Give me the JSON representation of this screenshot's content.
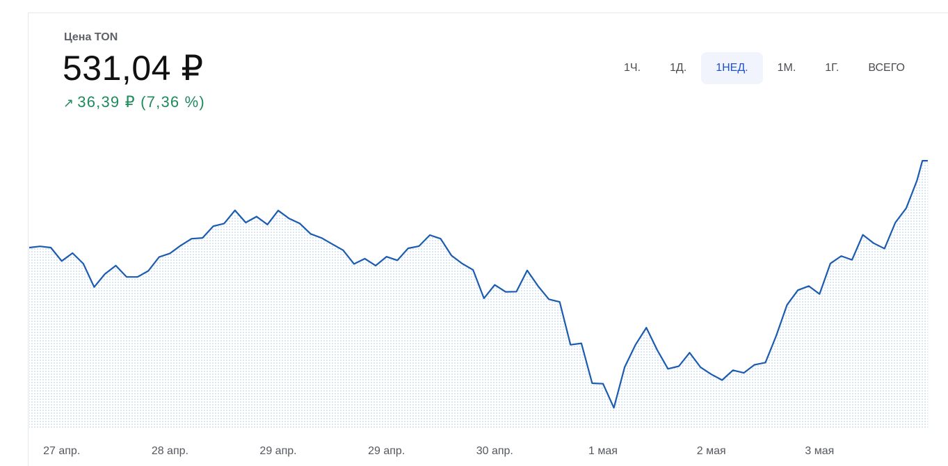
{
  "header": {
    "label": "Цена TON",
    "price": "531,04 ₽",
    "change_arrow": "↗",
    "change_text": "36,39 ₽ (7,36 %)",
    "change_color": "#1f8a5b"
  },
  "ranges": [
    {
      "label": "1Ч.",
      "active": false
    },
    {
      "label": "1Д.",
      "active": false
    },
    {
      "label": "1НЕД.",
      "active": true
    },
    {
      "label": "1М.",
      "active": false
    },
    {
      "label": "1Г.",
      "active": false
    },
    {
      "label": "ВСЕГО",
      "active": false
    }
  ],
  "chart_data": {
    "type": "area",
    "line_color": "#1a5bb0",
    "fill_color": "#cfe0f4",
    "grid": false,
    "ylim": [
      420,
      540
    ],
    "x_ticks": [
      "27 апр.",
      "28 апр.",
      "29 апр.",
      "29 апр.",
      "30 апр.",
      "1 мая",
      "2 мая",
      "3 мая"
    ],
    "x_tick_positions": [
      0.3,
      1.3,
      2.3,
      3.3,
      4.3,
      5.3,
      6.3,
      7.3
    ],
    "x": [
      0.0,
      0.1,
      0.2,
      0.3,
      0.4,
      0.5,
      0.6,
      0.7,
      0.8,
      0.9,
      1.0,
      1.1,
      1.2,
      1.3,
      1.4,
      1.5,
      1.6,
      1.7,
      1.8,
      1.9,
      2.0,
      2.1,
      2.2,
      2.3,
      2.4,
      2.5,
      2.6,
      2.7,
      2.8,
      2.9,
      3.0,
      3.1,
      3.2,
      3.3,
      3.4,
      3.5,
      3.6,
      3.7,
      3.8,
      3.9,
      4.0,
      4.1,
      4.2,
      4.3,
      4.4,
      4.5,
      4.6,
      4.7,
      4.8,
      4.9,
      5.0,
      5.1,
      5.2,
      5.3,
      5.4,
      5.5,
      5.6,
      5.7,
      5.8,
      5.9,
      6.0,
      6.1,
      6.2,
      6.3,
      6.4,
      6.5,
      6.6,
      6.7,
      6.8,
      6.9,
      7.0,
      7.1,
      7.2,
      7.3,
      7.4,
      7.5,
      7.6,
      7.7,
      7.8,
      7.9,
      8.0,
      8.1,
      8.2,
      8.25,
      8.3
    ],
    "values": [
      494.9,
      495.4,
      494.9,
      489.3,
      492.6,
      488.2,
      478.5,
      484.0,
      487.4,
      482.7,
      482.7,
      485.2,
      491.0,
      492.5,
      495.8,
      498.6,
      498.9,
      503.8,
      504.9,
      510.4,
      505.3,
      507.8,
      504.5,
      510.3,
      507.0,
      504.9,
      500.6,
      498.9,
      496.3,
      493.8,
      488.1,
      490.3,
      487.4,
      491.1,
      489.6,
      494.6,
      495.5,
      500.1,
      498.6,
      491.6,
      488.2,
      485.6,
      473.8,
      479.4,
      476.5,
      476.6,
      485.4,
      478.9,
      473.4,
      472.3,
      454.5,
      455.1,
      438.5,
      438.3,
      428.3,
      445.2,
      454.5,
      461.6,
      452.4,
      444.5,
      445.6,
      451.2,
      445.2,
      442.2,
      439.8,
      443.9,
      442.8,
      446.2,
      447.1,
      458.3,
      471.1,
      477.2,
      478.9,
      475.6,
      488.3,
      491.4,
      489.8,
      500.2,
      496.7,
      494.5,
      505.3,
      511.3,
      522.8,
      531.0,
      531.0
    ]
  }
}
